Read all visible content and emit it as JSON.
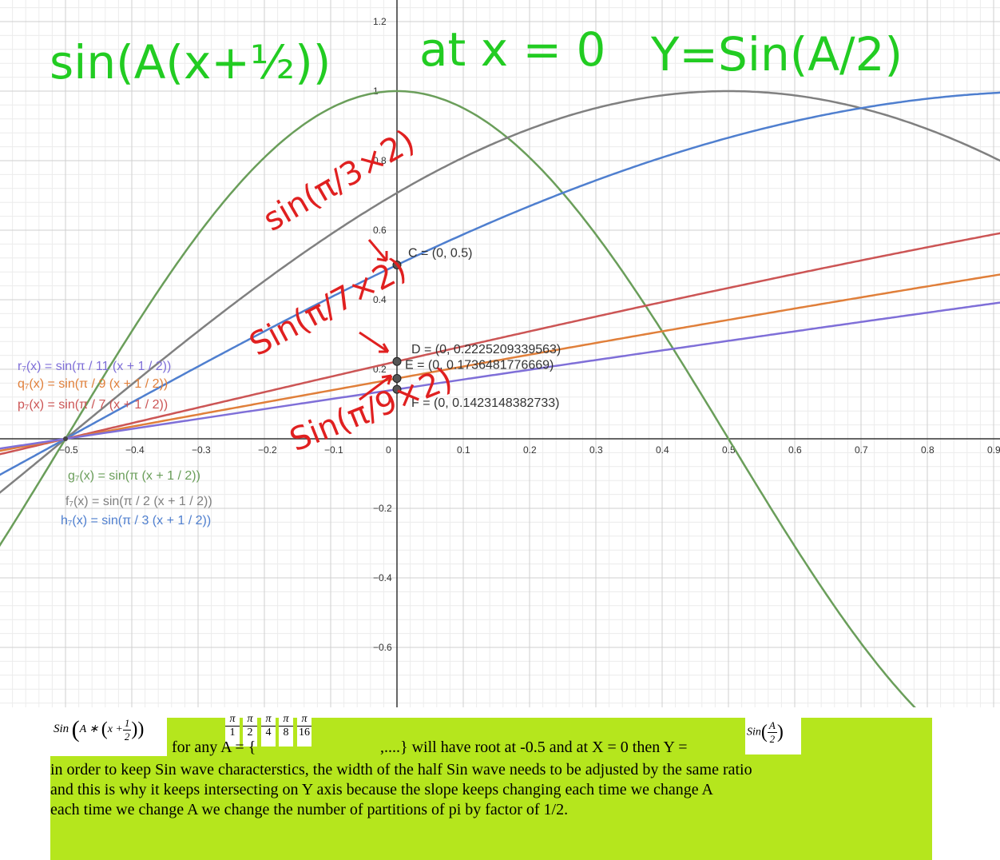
{
  "chart_data": {
    "type": "line",
    "xlim": [
      -0.6,
      0.9
    ],
    "ylim": [
      -0.77,
      1.2
    ],
    "grid": true,
    "x_ticks": [
      "−0.5",
      "−0.4",
      "−0.3",
      "−0.2",
      "−0.1",
      "0",
      "0.1",
      "0.2",
      "0.3",
      "0.4",
      "0.5",
      "0.6",
      "0.7",
      "0.8",
      "0.9"
    ],
    "y_ticks": [
      "1.2",
      "1",
      "0.8",
      "0.6",
      "0.4",
      "0.2",
      "−0.2",
      "−0.4",
      "−0.6"
    ],
    "x_tick_values": [
      -0.5,
      -0.4,
      -0.3,
      -0.2,
      -0.1,
      0,
      0.1,
      0.2,
      0.3,
      0.4,
      0.5,
      0.6,
      0.7,
      0.8,
      0.9
    ],
    "y_tick_values": [
      1.2,
      1,
      0.8,
      0.6,
      0.4,
      0.2,
      -0.2,
      -0.4,
      -0.6
    ],
    "series": [
      {
        "name": "g₇(x) = sin(π (x + 1 / 2))",
        "divisor": 1,
        "color": "#6a9e5a"
      },
      {
        "name": "f₇(x) = sin(π / 2 (x + 1 / 2))",
        "divisor": 2,
        "color": "#808080"
      },
      {
        "name": "h₇(x) = sin(π / 3 (x + 1 / 2))",
        "divisor": 3,
        "color": "#4f7fcf"
      },
      {
        "name": "p₇(x) = sin(π / 7 (x + 1 / 2))",
        "divisor": 7,
        "color": "#cc5555"
      },
      {
        "name": "q₇(x) = sin(π / 9 (x + 1 / 2))",
        "divisor": 9,
        "color": "#e07f3a"
      },
      {
        "name": "r₇(x) = sin(π / 11 (x + 1 / 2))",
        "divisor": 11,
        "color": "#7f6fd8"
      }
    ],
    "points": [
      {
        "label": "C = (0, 0.5)",
        "x": 0,
        "y": 0.5
      },
      {
        "label": "D = (0, 0.2225209339563)",
        "x": 0,
        "y": 0.2225209339563
      },
      {
        "label": "E = (0, 0.1736481776669)",
        "x": 0,
        "y": 0.1736481776669
      },
      {
        "label": "F = (0, 0.1423148382733)",
        "x": 0,
        "y": 0.1423148382733
      }
    ]
  },
  "handwriting": {
    "title_left": "sin(A(x+½))",
    "title_mid": "at x = 0",
    "title_right": "Y=Sin(A/2)",
    "red_1": "sin(π/3×2)",
    "red_2": "Sin(π/7×2)",
    "red_3": "Sin(π/9×2)",
    "colors": {
      "green": "#22cc22",
      "red": "#e02020"
    }
  },
  "note": {
    "formula_label": "Sin",
    "formula_a": "A ∗",
    "formula_x": "x +",
    "formula_half_n": "1",
    "formula_half_d": "2",
    "pi": "π",
    "denoms": [
      "1",
      "2",
      "4",
      "8",
      "16"
    ],
    "line1_a": "for any A = {",
    "line1_b": ",....} will have root at -0.5 and  at X = 0 then Y =",
    "result_label": "Sin",
    "result_n": "A",
    "result_d": "2",
    "line2": "in order to keep Sin wave characterstics, the width of the half Sin wave needs to be adjusted by the same ratio",
    "line3": "and this is why it keeps intersecting on Y axis because the slope keeps changing each time we change A",
    "line4": "each time we change A we change the number of partitions of pi by factor of  1/2.",
    "background": "#b5e61d"
  }
}
